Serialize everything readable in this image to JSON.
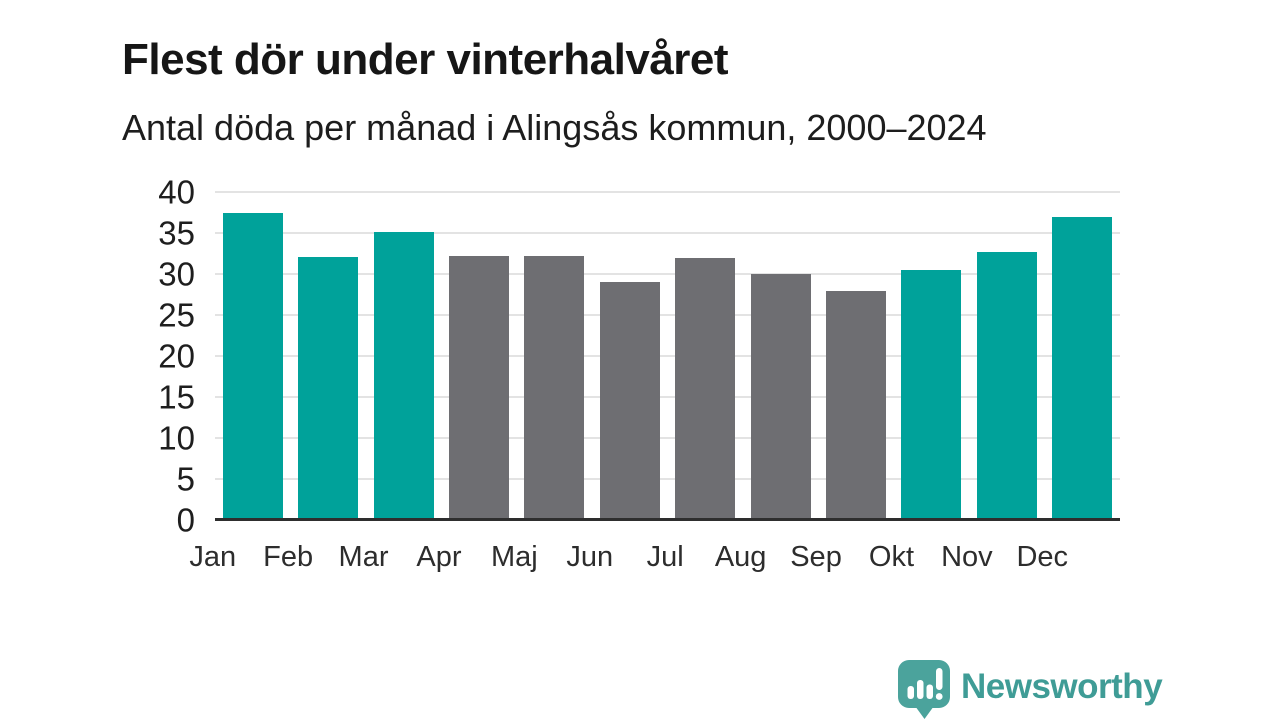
{
  "header": {
    "title": "Flest dör under vinterhalvåret",
    "subtitle": "Antal döda per månad i Alingsås kommun, 2000–2024"
  },
  "chart_data": {
    "type": "bar",
    "title": "Flest dör under vinterhalvåret",
    "subtitle": "Antal döda per månad i Alingsås kommun, 2000–2024",
    "categories": [
      "Jan",
      "Feb",
      "Mar",
      "Apr",
      "Maj",
      "Jun",
      "Jul",
      "Aug",
      "Sep",
      "Okt",
      "Nov",
      "Dec"
    ],
    "values": [
      37.4,
      32.1,
      35.1,
      32.2,
      32.2,
      29.0,
      31.9,
      30.0,
      27.9,
      30.5,
      32.7,
      37.0
    ],
    "bar_groups": [
      "winter",
      "winter",
      "winter",
      "summer",
      "summer",
      "summer",
      "summer",
      "summer",
      "summer",
      "winter",
      "winter",
      "winter"
    ],
    "palette": {
      "winter": "#00a29a",
      "summer": "#6e6e72"
    },
    "xlabel": "",
    "ylabel": "",
    "ylim": [
      0,
      40
    ],
    "yticks": [
      0,
      5,
      10,
      15,
      20,
      25,
      30,
      35,
      40
    ],
    "grid": true,
    "legend": false
  },
  "footer": {
    "brand": "Newsworthy",
    "logo_icon": "newsworthy-speech-bubble-bar-chart-icon",
    "brand_color": "#3f9c96",
    "icon_color": "#4ba39c"
  },
  "colors": {
    "highlight_bar": "#00a29a",
    "muted_bar": "#6e6e72",
    "gridline": "#e3e3e3",
    "axis": "#2e2e2e",
    "title_text": "#161616"
  }
}
